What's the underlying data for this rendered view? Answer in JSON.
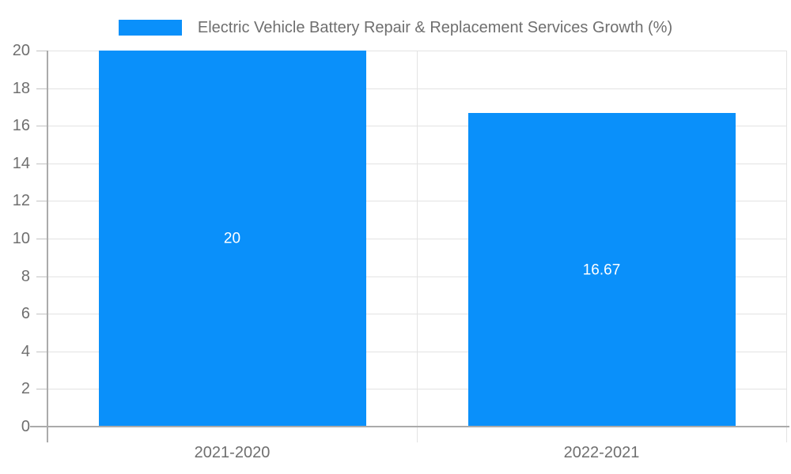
{
  "chart_data": {
    "type": "bar",
    "title": "Electric Vehicle Battery Repair & Replacement Services Growth (%)",
    "legend_position": "top",
    "categories": [
      "2021-2020",
      "2022-2021"
    ],
    "values": [
      20,
      16.67
    ],
    "value_labels": [
      "20",
      "16.67"
    ],
    "xlabel": "",
    "ylabel": "",
    "ylim": [
      0,
      20
    ],
    "yticks": [
      0,
      2,
      4,
      6,
      8,
      10,
      12,
      14,
      16,
      18,
      20
    ],
    "grid": true,
    "colors": {
      "bar": "#0a90fa",
      "legend_text": "#6f6f6f",
      "tick_text": "#6f6f6f",
      "value_label_text": "#ffffff",
      "gridline": "#e3e3e3",
      "axis_line": "#ababab",
      "tick_mark": "#c2c2c2",
      "background": "#ffffff"
    }
  }
}
